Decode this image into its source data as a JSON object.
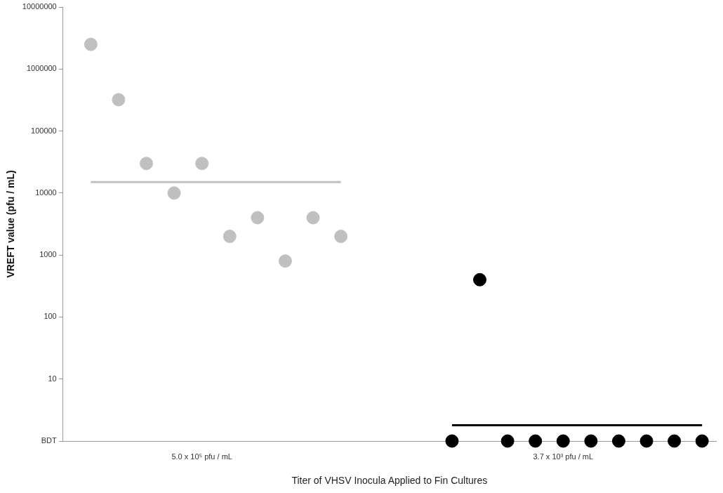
{
  "chart_data": {
    "type": "scatter",
    "xlabel": "Titer of VHSV Inocula Applied to Fin Cultures",
    "ylabel": "VREFT value (pfu / mL)",
    "log": "y",
    "grid": false,
    "legend": false,
    "marker": "circle",
    "categories": [
      null,
      null,
      null,
      null,
      "5.0 x 10⁵ pfu / mL",
      null,
      null,
      null,
      null,
      null,
      null,
      null,
      null,
      null,
      null,
      null,
      null,
      "3.7 x 10³ pfu / mL",
      null,
      null,
      null,
      null,
      null
    ],
    "ylim": [
      1,
      10000000
    ],
    "yticks": [
      {
        "value": 1,
        "label": "BDT"
      },
      10,
      100,
      1000,
      10000,
      100000,
      1000000,
      10000000
    ],
    "series": [
      {
        "color": "#c0c0c0",
        "values": [
          2500000,
          320000,
          30000,
          10000,
          30000,
          2000,
          4000,
          800,
          4000,
          2000,
          null,
          null,
          null,
          null,
          null,
          null,
          null,
          null,
          null,
          null,
          null,
          null,
          null
        ]
      },
      {
        "type": "line",
        "marker": "none",
        "color": "#c0c0c0",
        "values": [
          15000,
          15000,
          15000,
          15000,
          15000,
          15000,
          15000,
          15000,
          15000,
          15000,
          null,
          null,
          null,
          null,
          null,
          null,
          null,
          null,
          null,
          null,
          null,
          null,
          null
        ]
      },
      {
        "color": "#000000",
        "values": [
          null,
          null,
          null,
          null,
          null,
          null,
          null,
          null,
          null,
          null,
          null,
          null,
          null,
          1,
          400,
          1,
          1,
          1,
          1,
          1,
          1,
          1,
          1
        ]
      },
      {
        "type": "line",
        "marker": "none",
        "color": "#000000",
        "values": [
          null,
          null,
          null,
          null,
          null,
          null,
          null,
          null,
          null,
          null,
          null,
          null,
          null,
          1.8,
          1.8,
          1.8,
          1.8,
          1.8,
          1.8,
          1.8,
          1.8,
          1.8,
          1.8
        ]
      }
    ]
  }
}
